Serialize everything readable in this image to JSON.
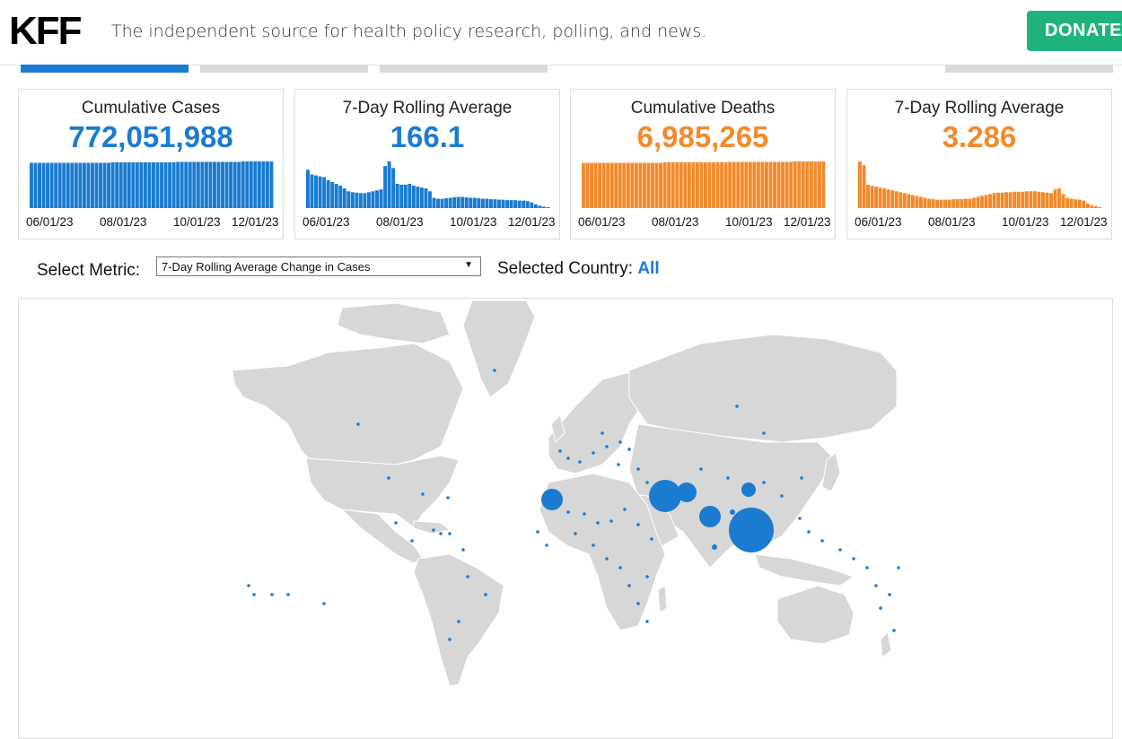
{
  "header": {
    "logo": "KFF",
    "tagline": "The independent source for health policy research, polling, and news.",
    "donate_label": "DONATE"
  },
  "tabs": [
    {
      "state": "active"
    },
    {
      "state": "inactive"
    },
    {
      "state": "inactive"
    },
    {
      "state": "inactive"
    }
  ],
  "cards": [
    {
      "title": "Cumulative Cases",
      "value": "772,051,988",
      "color": "#1a7bd0",
      "spark_type": "flat",
      "spark_values": [
        0.97,
        0.97,
        0.97,
        0.97,
        0.97,
        0.97,
        0.97,
        0.97,
        0.97,
        0.97,
        0.97,
        0.97,
        0.97,
        0.97,
        0.97,
        0.97,
        0.97,
        0.97,
        0.97,
        0.97,
        0.98,
        0.98,
        0.98,
        0.98,
        0.98,
        0.98,
        0.98,
        0.98,
        0.98,
        0.98,
        0.98,
        0.98,
        0.98,
        0.98,
        0.98,
        0.98,
        0.99,
        0.99,
        0.99,
        0.99,
        0.99,
        0.99,
        0.99,
        0.99,
        0.99,
        0.99,
        0.99,
        0.99,
        0.99,
        0.99,
        0.99,
        0.99,
        1,
        1,
        1,
        1,
        1,
        1,
        1,
        1
      ],
      "dates": [
        "06/01/23",
        "08/01/23",
        "10/01/23",
        "12/01/23"
      ]
    },
    {
      "title": "7-Day Rolling Average",
      "value": "166.1",
      "color": "#1a7bd0",
      "spark_type": "trend",
      "spark_values": [
        0.82,
        0.72,
        0.7,
        0.68,
        0.66,
        0.6,
        0.56,
        0.52,
        0.48,
        0.42,
        0.36,
        0.34,
        0.33,
        0.32,
        0.32,
        0.34,
        0.36,
        0.38,
        0.4,
        0.9,
        1.0,
        0.86,
        0.52,
        0.5,
        0.5,
        0.52,
        0.48,
        0.46,
        0.44,
        0.42,
        0.36,
        0.22,
        0.2,
        0.2,
        0.21,
        0.22,
        0.23,
        0.24,
        0.24,
        0.23,
        0.22,
        0.22,
        0.21,
        0.2,
        0.2,
        0.19,
        0.19,
        0.18,
        0.18,
        0.17,
        0.17,
        0.17,
        0.16,
        0.16,
        0.15,
        0.12,
        0.08,
        0.05,
        0.03,
        0.02
      ],
      "dates": [
        "06/01/23",
        "08/01/23",
        "10/01/23",
        "12/01/23"
      ]
    },
    {
      "title": "Cumulative Deaths",
      "value": "6,985,265",
      "color": "#f28a2c",
      "spark_type": "flat",
      "spark_values": [
        0.97,
        0.97,
        0.97,
        0.97,
        0.97,
        0.97,
        0.97,
        0.97,
        0.97,
        0.97,
        0.97,
        0.97,
        0.97,
        0.97,
        0.97,
        0.97,
        0.97,
        0.97,
        0.97,
        0.97,
        0.98,
        0.98,
        0.98,
        0.98,
        0.98,
        0.98,
        0.98,
        0.98,
        0.98,
        0.98,
        0.98,
        0.98,
        0.98,
        0.98,
        0.98,
        0.98,
        0.99,
        0.99,
        0.99,
        0.99,
        0.99,
        0.99,
        0.99,
        0.99,
        0.99,
        0.99,
        0.99,
        0.99,
        0.99,
        0.99,
        0.99,
        0.99,
        1,
        1,
        1,
        1,
        1,
        1,
        1,
        1
      ],
      "dates": [
        "06/01/23",
        "08/01/23",
        "10/01/23",
        "12/01/23"
      ]
    },
    {
      "title": "7-Day Rolling Average",
      "value": "3.286",
      "color": "#f28a2c",
      "spark_type": "trend",
      "spark_values": [
        1.0,
        0.92,
        0.5,
        0.48,
        0.46,
        0.44,
        0.42,
        0.4,
        0.38,
        0.36,
        0.34,
        0.32,
        0.3,
        0.28,
        0.26,
        0.24,
        0.22,
        0.2,
        0.19,
        0.18,
        0.18,
        0.18,
        0.18,
        0.19,
        0.19,
        0.19,
        0.2,
        0.2,
        0.22,
        0.24,
        0.26,
        0.28,
        0.3,
        0.32,
        0.33,
        0.33,
        0.34,
        0.34,
        0.35,
        0.35,
        0.35,
        0.36,
        0.36,
        0.36,
        0.35,
        0.34,
        0.33,
        0.32,
        0.4,
        0.42,
        0.3,
        0.22,
        0.2,
        0.19,
        0.18,
        0.16,
        0.1,
        0.06,
        0.04,
        0.02
      ],
      "dates": [
        "06/01/23",
        "08/01/23",
        "10/01/23",
        "12/01/23"
      ]
    }
  ],
  "controls": {
    "metric_label": "Select Metric:",
    "metric_selected": "7-Day Rolling Average Change in Cases",
    "country_label": "Selected Country:",
    "country_value": "All"
  },
  "map": {
    "land_color": "#d7d7d7",
    "bubble_color": "#1a7bd0",
    "bubbles": [
      {
        "location": "Southeast Asia",
        "value": 1.0
      },
      {
        "location": "Iran",
        "value": 0.46
      },
      {
        "location": "Afghanistan",
        "value": 0.16
      },
      {
        "location": "Morocco",
        "value": 0.12
      },
      {
        "location": "India",
        "value": 0.11
      },
      {
        "location": "China",
        "value": 0.05
      }
    ]
  }
}
